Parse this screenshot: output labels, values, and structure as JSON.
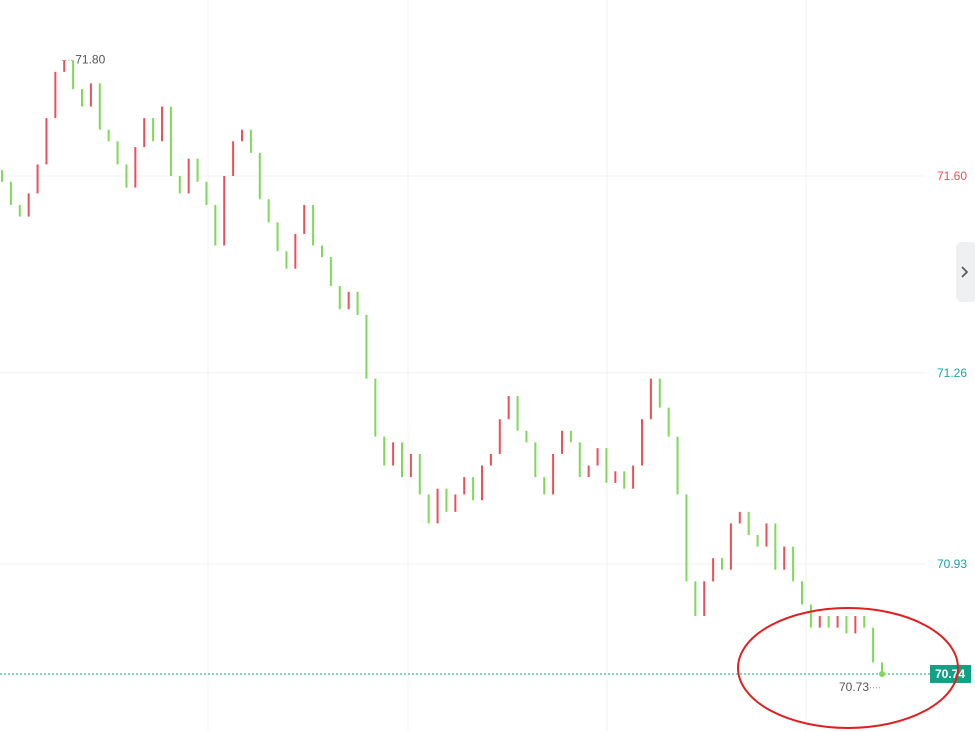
{
  "chart_data": {
    "type": "candlestick",
    "open": [
      71.61,
      71.59,
      71.55,
      71.53,
      71.57,
      71.62,
      71.7,
      71.78,
      71.8,
      71.75,
      71.72,
      71.76,
      71.68,
      71.66,
      71.62,
      71.58,
      71.65,
      71.7,
      71.66,
      71.72,
      71.6,
      71.57,
      71.63,
      71.59,
      71.55,
      71.48,
      71.6,
      71.66,
      71.68,
      71.64,
      71.56,
      71.52,
      71.47,
      71.44,
      71.5,
      71.55,
      71.48,
      71.46,
      71.41,
      71.37,
      71.4,
      71.36,
      71.25,
      71.15,
      71.1,
      71.14,
      71.08,
      71.12,
      71.05,
      71.0,
      71.06,
      71.02,
      71.05,
      71.08,
      71.04,
      71.1,
      71.12,
      71.18,
      71.22,
      71.16,
      71.14,
      71.08,
      71.05,
      71.12,
      71.16,
      71.14,
      71.08,
      71.1,
      71.13,
      71.07,
      71.09,
      71.06,
      71.1,
      71.18,
      71.25,
      71.2,
      71.15,
      71.05,
      70.9,
      70.84,
      70.9,
      70.94,
      70.92,
      71.0,
      71.02,
      70.98,
      70.96,
      71.0,
      70.92,
      70.96,
      70.9,
      70.86,
      70.82,
      70.84,
      70.82,
      70.84,
      70.81,
      70.84,
      70.82,
      70.76
    ],
    "close": [
      71.59,
      71.55,
      71.53,
      71.57,
      71.62,
      71.7,
      71.78,
      71.8,
      71.75,
      71.72,
      71.76,
      71.68,
      71.66,
      71.62,
      71.58,
      71.65,
      71.7,
      71.66,
      71.72,
      71.6,
      71.57,
      71.63,
      71.59,
      71.55,
      71.48,
      71.6,
      71.66,
      71.68,
      71.64,
      71.56,
      71.52,
      71.47,
      71.44,
      71.5,
      71.55,
      71.48,
      71.46,
      71.41,
      71.37,
      71.4,
      71.36,
      71.25,
      71.15,
      71.1,
      71.14,
      71.08,
      71.12,
      71.05,
      71.0,
      71.06,
      71.02,
      71.05,
      71.08,
      71.04,
      71.1,
      71.12,
      71.18,
      71.22,
      71.16,
      71.14,
      71.08,
      71.05,
      71.12,
      71.16,
      71.14,
      71.08,
      71.1,
      71.13,
      71.07,
      71.09,
      71.06,
      71.1,
      71.18,
      71.25,
      71.2,
      71.15,
      71.05,
      70.9,
      70.84,
      70.9,
      70.94,
      70.92,
      71.0,
      71.02,
      70.98,
      70.96,
      71.0,
      70.92,
      70.96,
      70.9,
      70.86,
      70.82,
      70.84,
      70.82,
      70.84,
      70.81,
      70.84,
      70.82,
      70.76,
      70.74
    ],
    "up_color": "#e8505b",
    "down_color": "#7ed957",
    "ylim": [
      70.6415,
      71.904
    ],
    "yticks": [
      {
        "value": 71.6,
        "label": "71.60"
      },
      {
        "value": 71.26,
        "label": "71.26"
      },
      {
        "value": 70.93,
        "label": "70.93"
      }
    ],
    "ytick_colors": [
      "#e8505b",
      "#1aa3a3",
      "#1aa3a3"
    ],
    "grid": true,
    "max_label": {
      "value": 71.8,
      "label": "71.80"
    },
    "min_label": {
      "value": 70.73,
      "label": "70.73"
    },
    "last_price": {
      "value": 70.74,
      "label": "70.74"
    },
    "last_price_color": "#14a085"
  }
}
